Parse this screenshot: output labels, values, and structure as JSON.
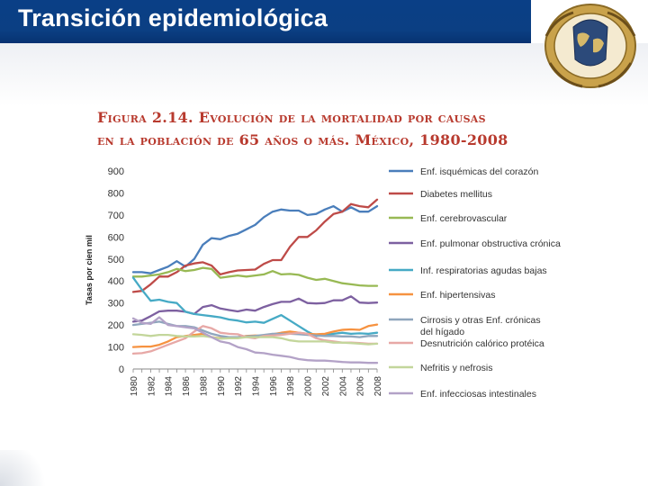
{
  "slide": {
    "title": "Transición epidemiológica"
  },
  "figure": {
    "title_line1": "Figura 2.14. Evolución de la mortalidad por causas",
    "title_line2": "en la población de 65 años o más. México, 1980-2008"
  },
  "chart_data": {
    "type": "line",
    "ylabel": "Tasas por cien mil",
    "xlabel": "",
    "ylim": [
      0,
      900
    ],
    "yticks": [
      0,
      100,
      200,
      300,
      400,
      500,
      600,
      700,
      800,
      900
    ],
    "x": [
      1980,
      1981,
      1982,
      1983,
      1984,
      1985,
      1986,
      1987,
      1988,
      1989,
      1990,
      1991,
      1992,
      1993,
      1994,
      1995,
      1996,
      1997,
      1998,
      1999,
      2000,
      2001,
      2002,
      2003,
      2004,
      2005,
      2006,
      2007,
      2008
    ],
    "xtick_labels": [
      "1980",
      "1982",
      "1984",
      "1986",
      "1988",
      "1990",
      "1992",
      "1994",
      "1996",
      "1998",
      "2000",
      "2002",
      "2004",
      "2006",
      "2008"
    ],
    "legend_position": "right",
    "series": [
      {
        "name": "Enf. isquémicas del corazón",
        "color": "#4a7ebb",
        "values": [
          440,
          440,
          435,
          450,
          465,
          490,
          465,
          500,
          565,
          595,
          590,
          605,
          615,
          635,
          655,
          690,
          715,
          725,
          720,
          720,
          700,
          705,
          725,
          740,
          715,
          735,
          715,
          715,
          740
        ]
      },
      {
        "name": "Diabetes mellitus",
        "color": "#be4b48",
        "values": [
          350,
          355,
          385,
          420,
          420,
          440,
          470,
          480,
          485,
          470,
          430,
          440,
          448,
          450,
          452,
          478,
          495,
          495,
          555,
          600,
          600,
          630,
          670,
          705,
          715,
          750,
          740,
          735,
          770
        ]
      },
      {
        "name": "Enf. cerebrovascular",
        "color": "#98b954",
        "values": [
          420,
          420,
          425,
          430,
          440,
          455,
          445,
          450,
          460,
          455,
          415,
          420,
          425,
          420,
          425,
          430,
          445,
          430,
          432,
          428,
          415,
          405,
          410,
          400,
          390,
          385,
          380,
          378,
          378
        ]
      },
      {
        "name": "Enf. pulmonar obstructiva crónica",
        "color": "#7d60a0",
        "values": [
          215,
          220,
          240,
          262,
          265,
          265,
          260,
          250,
          282,
          290,
          275,
          268,
          262,
          270,
          265,
          282,
          295,
          305,
          305,
          320,
          300,
          298,
          300,
          312,
          312,
          330,
          302,
          300,
          302
        ]
      },
      {
        "name": "Inf. respiratorias agudas bajas",
        "color": "#46aac5",
        "values": [
          415,
          360,
          310,
          315,
          305,
          300,
          260,
          250,
          245,
          240,
          235,
          225,
          220,
          212,
          215,
          210,
          228,
          245,
          220,
          195,
          170,
          150,
          155,
          160,
          165,
          160,
          162,
          160,
          165
        ]
      },
      {
        "name": "Enf. hipertensivas",
        "color": "#f69240",
        "values": [
          100,
          102,
          102,
          110,
          125,
          145,
          150,
          155,
          160,
          145,
          140,
          140,
          145,
          150,
          152,
          150,
          158,
          165,
          170,
          165,
          160,
          158,
          160,
          170,
          178,
          180,
          178,
          195,
          202
        ]
      },
      {
        "name": "Cirrosis y otras Enf. crónicas del hígado",
        "color": "#8fa6bd",
        "values": [
          200,
          205,
          210,
          215,
          205,
          195,
          195,
          190,
          175,
          160,
          150,
          145,
          145,
          148,
          150,
          155,
          160,
          160,
          160,
          158,
          155,
          152,
          150,
          150,
          148,
          148,
          145,
          150,
          150
        ]
      },
      {
        "name": "Desnutrición calórico protéica",
        "color": "#e7a8a6",
        "values": [
          70,
          72,
          80,
          95,
          110,
          125,
          140,
          170,
          195,
          185,
          165,
          160,
          158,
          145,
          140,
          150,
          152,
          155,
          160,
          165,
          160,
          140,
          130,
          125,
          120,
          120,
          118,
          115,
          115
        ]
      },
      {
        "name": "Nefritis y nefrosis",
        "color": "#c3d69b",
        "values": [
          158,
          155,
          150,
          155,
          155,
          150,
          148,
          148,
          150,
          145,
          138,
          140,
          140,
          145,
          145,
          145,
          145,
          140,
          130,
          125,
          125,
          125,
          125,
          120,
          120,
          118,
          115,
          112,
          115
        ]
      },
      {
        "name": "Enf. infecciosas intestinales",
        "color": "#b3a2c7",
        "values": [
          230,
          210,
          205,
          235,
          200,
          195,
          190,
          185,
          165,
          145,
          125,
          118,
          100,
          90,
          75,
          72,
          65,
          60,
          55,
          45,
          40,
          38,
          38,
          35,
          32,
          30,
          30,
          28,
          28
        ]
      }
    ]
  }
}
